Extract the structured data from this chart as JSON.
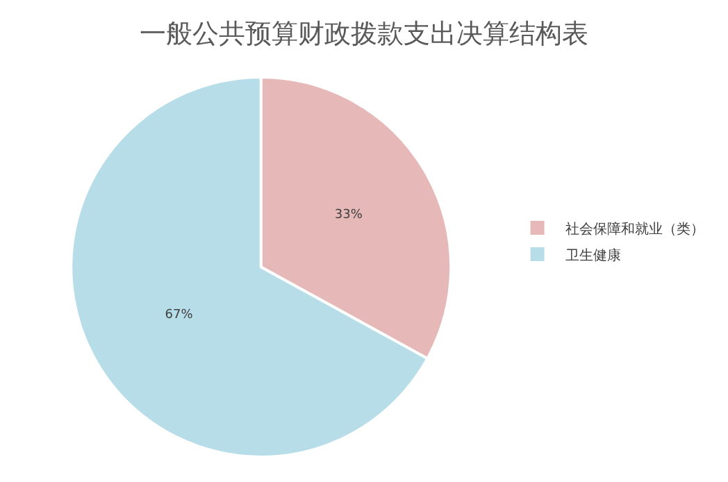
{
  "chart_data": {
    "type": "pie",
    "title": "一般公共预算财政拨款支出决算结构表",
    "categories": [
      "社会保障和就业（类）",
      "卫生健康"
    ],
    "values": [
      33,
      67
    ],
    "value_labels": [
      "33%",
      "67%"
    ],
    "colors": [
      "#e6b9b8",
      "#b7dee8"
    ],
    "legend": "right"
  }
}
